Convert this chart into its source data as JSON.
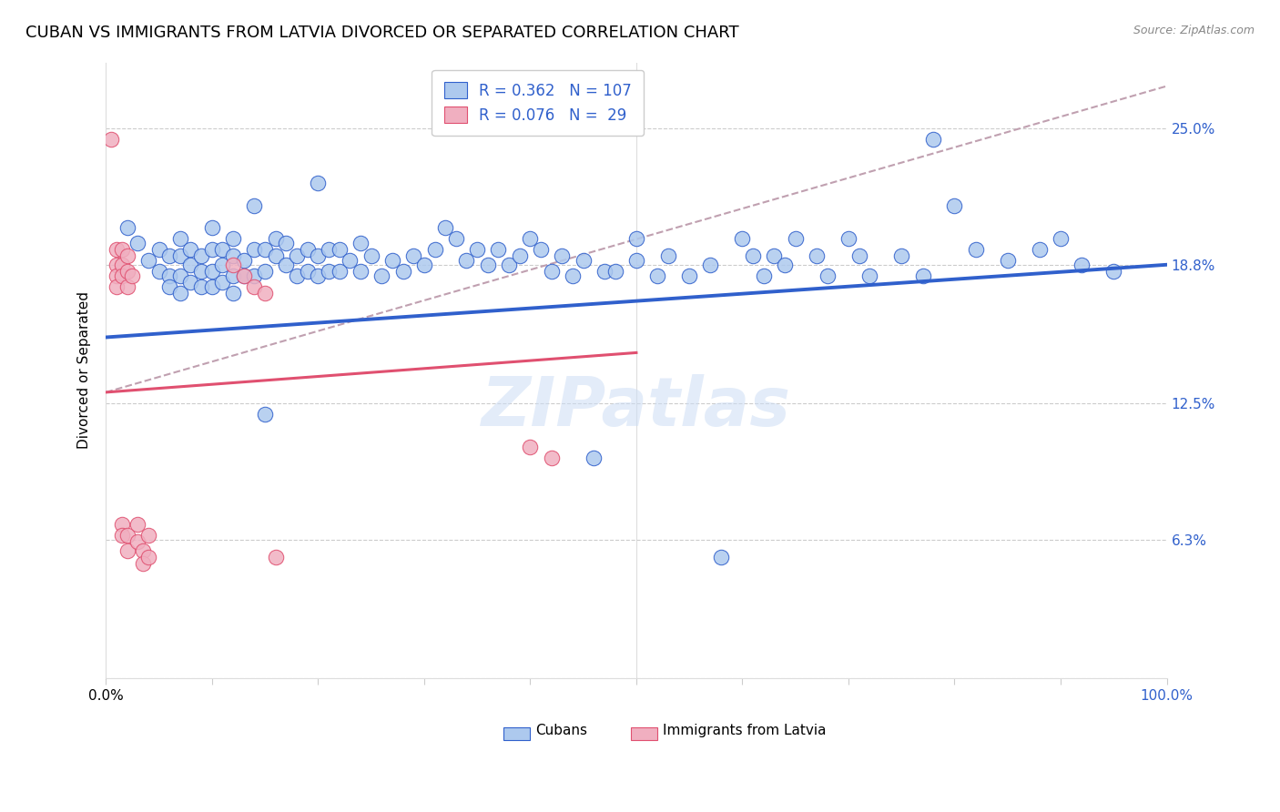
{
  "title": "CUBAN VS IMMIGRANTS FROM LATVIA DIVORCED OR SEPARATED CORRELATION CHART",
  "source": "Source: ZipAtlas.com",
  "ylabel": "Divorced or Separated",
  "xlim": [
    0,
    1.0
  ],
  "ylim": [
    0.0,
    0.28
  ],
  "yticks": [
    0.0,
    0.063,
    0.125,
    0.188,
    0.25
  ],
  "ytick_labels": [
    "",
    "6.3%",
    "12.5%",
    "18.8%",
    "25.0%"
  ],
  "watermark": "ZIPatlas",
  "blue_color": "#adc9ee",
  "pink_color": "#f0afc0",
  "blue_line_color": "#3060cc",
  "pink_line_color": "#e05070",
  "dashed_line_color": "#c0a0b0",
  "title_fontsize": 13,
  "axis_label_fontsize": 11,
  "tick_fontsize": 11,
  "right_tick_color": "#3060cc",
  "blue_scatter": [
    [
      0.02,
      0.205
    ],
    [
      0.03,
      0.198
    ],
    [
      0.04,
      0.19
    ],
    [
      0.05,
      0.195
    ],
    [
      0.05,
      0.185
    ],
    [
      0.06,
      0.192
    ],
    [
      0.06,
      0.183
    ],
    [
      0.06,
      0.178
    ],
    [
      0.07,
      0.2
    ],
    [
      0.07,
      0.192
    ],
    [
      0.07,
      0.183
    ],
    [
      0.07,
      0.175
    ],
    [
      0.08,
      0.195
    ],
    [
      0.08,
      0.188
    ],
    [
      0.08,
      0.18
    ],
    [
      0.09,
      0.192
    ],
    [
      0.09,
      0.185
    ],
    [
      0.09,
      0.178
    ],
    [
      0.1,
      0.205
    ],
    [
      0.1,
      0.195
    ],
    [
      0.1,
      0.185
    ],
    [
      0.1,
      0.178
    ],
    [
      0.11,
      0.195
    ],
    [
      0.11,
      0.188
    ],
    [
      0.11,
      0.18
    ],
    [
      0.12,
      0.2
    ],
    [
      0.12,
      0.192
    ],
    [
      0.12,
      0.183
    ],
    [
      0.12,
      0.175
    ],
    [
      0.13,
      0.19
    ],
    [
      0.13,
      0.183
    ],
    [
      0.14,
      0.215
    ],
    [
      0.14,
      0.195
    ],
    [
      0.14,
      0.183
    ],
    [
      0.15,
      0.195
    ],
    [
      0.15,
      0.185
    ],
    [
      0.15,
      0.12
    ],
    [
      0.16,
      0.2
    ],
    [
      0.16,
      0.192
    ],
    [
      0.17,
      0.198
    ],
    [
      0.17,
      0.188
    ],
    [
      0.18,
      0.192
    ],
    [
      0.18,
      0.183
    ],
    [
      0.19,
      0.195
    ],
    [
      0.19,
      0.185
    ],
    [
      0.2,
      0.225
    ],
    [
      0.2,
      0.192
    ],
    [
      0.2,
      0.183
    ],
    [
      0.21,
      0.195
    ],
    [
      0.21,
      0.185
    ],
    [
      0.22,
      0.195
    ],
    [
      0.22,
      0.185
    ],
    [
      0.23,
      0.19
    ],
    [
      0.24,
      0.198
    ],
    [
      0.24,
      0.185
    ],
    [
      0.25,
      0.192
    ],
    [
      0.26,
      0.183
    ],
    [
      0.27,
      0.19
    ],
    [
      0.28,
      0.185
    ],
    [
      0.29,
      0.192
    ],
    [
      0.3,
      0.188
    ],
    [
      0.31,
      0.195
    ],
    [
      0.32,
      0.205
    ],
    [
      0.33,
      0.2
    ],
    [
      0.34,
      0.19
    ],
    [
      0.35,
      0.195
    ],
    [
      0.36,
      0.188
    ],
    [
      0.37,
      0.195
    ],
    [
      0.38,
      0.188
    ],
    [
      0.39,
      0.192
    ],
    [
      0.4,
      0.2
    ],
    [
      0.41,
      0.195
    ],
    [
      0.42,
      0.185
    ],
    [
      0.43,
      0.192
    ],
    [
      0.44,
      0.183
    ],
    [
      0.45,
      0.19
    ],
    [
      0.46,
      0.1
    ],
    [
      0.47,
      0.185
    ],
    [
      0.48,
      0.185
    ],
    [
      0.5,
      0.2
    ],
    [
      0.5,
      0.19
    ],
    [
      0.52,
      0.183
    ],
    [
      0.53,
      0.192
    ],
    [
      0.55,
      0.183
    ],
    [
      0.57,
      0.188
    ],
    [
      0.58,
      0.055
    ],
    [
      0.6,
      0.2
    ],
    [
      0.61,
      0.192
    ],
    [
      0.62,
      0.183
    ],
    [
      0.63,
      0.192
    ],
    [
      0.64,
      0.188
    ],
    [
      0.65,
      0.2
    ],
    [
      0.67,
      0.192
    ],
    [
      0.68,
      0.183
    ],
    [
      0.7,
      0.2
    ],
    [
      0.71,
      0.192
    ],
    [
      0.72,
      0.183
    ],
    [
      0.75,
      0.192
    ],
    [
      0.77,
      0.183
    ],
    [
      0.78,
      0.245
    ],
    [
      0.8,
      0.215
    ],
    [
      0.82,
      0.195
    ],
    [
      0.85,
      0.19
    ],
    [
      0.88,
      0.195
    ],
    [
      0.9,
      0.2
    ],
    [
      0.92,
      0.188
    ],
    [
      0.95,
      0.185
    ]
  ],
  "pink_scatter": [
    [
      0.005,
      0.245
    ],
    [
      0.01,
      0.195
    ],
    [
      0.01,
      0.188
    ],
    [
      0.01,
      0.183
    ],
    [
      0.01,
      0.178
    ],
    [
      0.015,
      0.195
    ],
    [
      0.015,
      0.188
    ],
    [
      0.015,
      0.183
    ],
    [
      0.015,
      0.07
    ],
    [
      0.015,
      0.065
    ],
    [
      0.02,
      0.192
    ],
    [
      0.02,
      0.185
    ],
    [
      0.02,
      0.178
    ],
    [
      0.02,
      0.065
    ],
    [
      0.02,
      0.058
    ],
    [
      0.025,
      0.183
    ],
    [
      0.03,
      0.07
    ],
    [
      0.03,
      0.062
    ],
    [
      0.035,
      0.058
    ],
    [
      0.035,
      0.052
    ],
    [
      0.04,
      0.065
    ],
    [
      0.04,
      0.055
    ],
    [
      0.12,
      0.188
    ],
    [
      0.13,
      0.183
    ],
    [
      0.14,
      0.178
    ],
    [
      0.15,
      0.175
    ],
    [
      0.16,
      0.055
    ],
    [
      0.4,
      0.105
    ],
    [
      0.42,
      0.1
    ]
  ],
  "blue_trendline": [
    [
      0.0,
      0.155
    ],
    [
      1.0,
      0.188
    ]
  ],
  "pink_trendline": [
    [
      0.0,
      0.13
    ],
    [
      0.5,
      0.148
    ]
  ],
  "dashed_trendline": [
    [
      0.0,
      0.13
    ],
    [
      1.02,
      0.272
    ]
  ]
}
